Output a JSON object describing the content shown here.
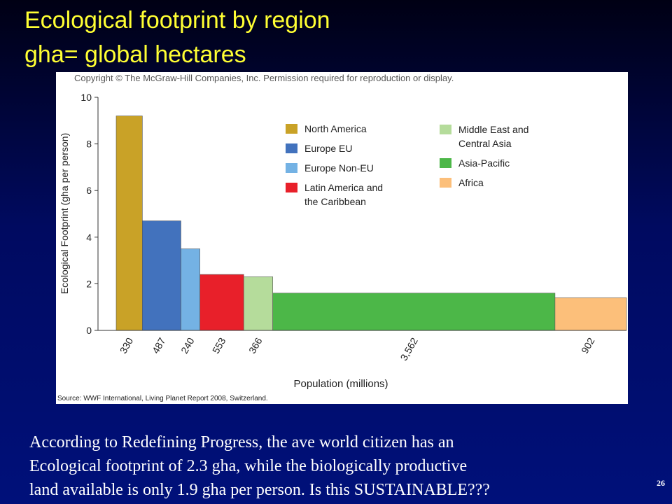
{
  "slide_title": [
    "Ecological footprint by region",
    "gha= global hectares"
  ],
  "chart_data": {
    "type": "variable-width-bar",
    "copyright": "Copyright © The McGraw-Hill Companies, Inc. Permission required for reproduction or display.",
    "source": "Source: WWF International, Living Planet Report 2008, Switzerland.",
    "ylabel": "Ecological Footprint (gha per person)",
    "xlabel": "Population (millions)",
    "ylim": [
      0,
      10
    ],
    "yticks": [
      0,
      2,
      4,
      6,
      8,
      10
    ],
    "categories": [
      "North America",
      "Europe EU",
      "Europe Non-EU",
      "Latin America and the Caribbean",
      "Middle East and Central Asia",
      "Asia-Pacific",
      "Africa"
    ],
    "colors": [
      "#c9a227",
      "#4272bd",
      "#74b2e4",
      "#e8202a",
      "#b5dc9b",
      "#4cb748",
      "#fcbf7a"
    ],
    "values": [
      9.2,
      4.7,
      3.5,
      2.4,
      2.3,
      1.6,
      1.4
    ],
    "widths": [
      330,
      487,
      240,
      553,
      366,
      {
        "value": 3562,
        "label": "3,562"
      },
      902
    ]
  },
  "body": [
    "According to Redefining Progress, the ave world citizen has an",
    "Ecological footprint of 2.3 gha, while the biologically productive",
    "land available is only 1.9 gha per person. Is this SUSTAINABLE???"
  ],
  "slide_number": "26"
}
